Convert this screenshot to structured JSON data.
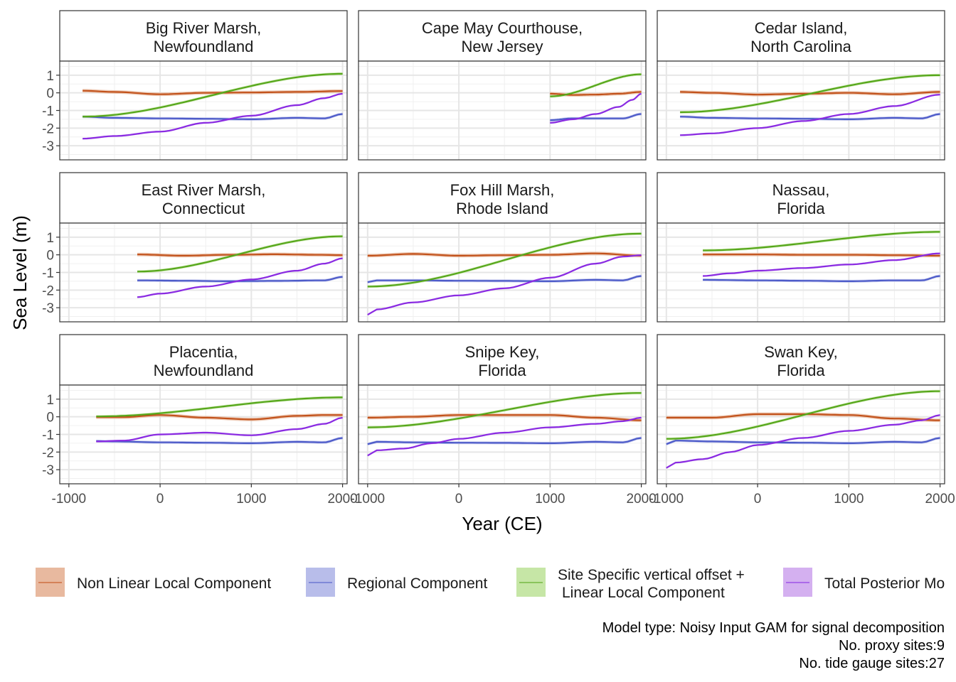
{
  "chart_data": {
    "type": "line",
    "layout": "facet-grid-3x3",
    "xlabel": "Year (CE)",
    "ylabel": "Sea Level (m)",
    "xlim": [
      -1100,
      2050
    ],
    "ylim": [
      -3.8,
      1.8
    ],
    "x_ticks": [
      -1000,
      0,
      1000,
      2000
    ],
    "x_tick_labels": [
      "-1000",
      "0",
      "1000",
      "2000"
    ],
    "y_ticks": [
      1,
      0,
      -1,
      -2,
      -3
    ],
    "y_tick_labels": [
      "1",
      "0",
      "-1",
      "-2",
      "-3"
    ],
    "grid": true,
    "legend_position": "bottom",
    "legend": [
      {
        "key": "nonlinear",
        "label": "Non Linear Local Component",
        "color": "#c2521b",
        "fill": "#e8b99f"
      },
      {
        "key": "regional",
        "label": "Regional Component",
        "color": "#4d5bc9",
        "fill": "#b8bdea"
      },
      {
        "key": "linear",
        "label_lines": [
          "Site Specific vertical offset +",
          "Linear Local Component"
        ],
        "color": "#55a61a",
        "fill": "#c6e6a6"
      },
      {
        "key": "total",
        "label": "Total Posterior Mo",
        "color": "#8a2be2",
        "fill": "#d4b0f0"
      }
    ],
    "caption_lines": [
      "Model type: Noisy Input GAM for signal decomposition",
      "No. proxy sites:9",
      "No. tide gauge sites:27"
    ],
    "panels": [
      {
        "title_lines": [
          "Big River Marsh,",
          "Newfoundland"
        ],
        "nonlinear": {
          "x": [
            -850,
            -500,
            0,
            500,
            1000,
            1500,
            2000
          ],
          "y": [
            0.12,
            0.05,
            -0.08,
            0.0,
            0.02,
            0.05,
            0.1
          ]
        },
        "regional": {
          "x": [
            -850,
            -500,
            0,
            500,
            1000,
            1500,
            1800,
            2000
          ],
          "y": [
            -1.35,
            -1.42,
            -1.45,
            -1.47,
            -1.5,
            -1.42,
            -1.45,
            -1.2
          ]
        },
        "linear": {
          "x": [
            -850,
            2000
          ],
          "y": [
            -1.35,
            1.08
          ]
        },
        "total": {
          "x": [
            -850,
            -500,
            0,
            500,
            1000,
            1500,
            1800,
            2000
          ],
          "y": [
            -2.6,
            -2.45,
            -2.2,
            -1.7,
            -1.3,
            -0.7,
            -0.3,
            -0.05
          ]
        }
      },
      {
        "title_lines": [
          "Cape May Courthouse,",
          "New Jersey"
        ],
        "nonlinear": {
          "x": [
            1000,
            1250,
            1500,
            1750,
            2000
          ],
          "y": [
            -0.05,
            -0.12,
            -0.1,
            -0.05,
            0.05
          ]
        },
        "regional": {
          "x": [
            1000,
            1250,
            1500,
            1800,
            2000
          ],
          "y": [
            -1.55,
            -1.45,
            -1.45,
            -1.45,
            -1.2
          ]
        },
        "linear": {
          "x": [
            1000,
            2000
          ],
          "y": [
            -0.2,
            1.05
          ]
        },
        "total": {
          "x": [
            1000,
            1250,
            1500,
            1750,
            1900,
            2000
          ],
          "y": [
            -1.7,
            -1.5,
            -1.2,
            -0.8,
            -0.4,
            -0.05
          ]
        }
      },
      {
        "title_lines": [
          "Cedar Island,",
          "North Carolina"
        ],
        "nonlinear": {
          "x": [
            -850,
            -500,
            0,
            500,
            1000,
            1500,
            2000
          ],
          "y": [
            0.05,
            0.0,
            -0.1,
            -0.05,
            0.0,
            -0.08,
            0.05
          ]
        },
        "regional": {
          "x": [
            -850,
            -500,
            0,
            500,
            1000,
            1500,
            1800,
            2000
          ],
          "y": [
            -1.35,
            -1.42,
            -1.45,
            -1.47,
            -1.5,
            -1.42,
            -1.45,
            -1.2
          ]
        },
        "linear": {
          "x": [
            -850,
            2000
          ],
          "y": [
            -1.1,
            1.0
          ]
        },
        "total": {
          "x": [
            -850,
            -500,
            0,
            500,
            1000,
            1500,
            2000
          ],
          "y": [
            -2.4,
            -2.3,
            -2.0,
            -1.6,
            -1.2,
            -0.75,
            -0.1
          ]
        }
      },
      {
        "title_lines": [
          "East River Marsh,",
          "Connecticut"
        ],
        "nonlinear": {
          "x": [
            -250,
            250,
            750,
            1250,
            1750,
            2000
          ],
          "y": [
            0.02,
            -0.05,
            0.0,
            0.03,
            0.0,
            -0.02
          ]
        },
        "regional": {
          "x": [
            -250,
            250,
            750,
            1250,
            1800,
            2000
          ],
          "y": [
            -1.45,
            -1.47,
            -1.5,
            -1.48,
            -1.45,
            -1.25
          ]
        },
        "linear": {
          "x": [
            -250,
            2000
          ],
          "y": [
            -0.95,
            1.05
          ]
        },
        "total": {
          "x": [
            -250,
            0,
            500,
            1000,
            1500,
            1800,
            2000
          ],
          "y": [
            -2.4,
            -2.2,
            -1.8,
            -1.4,
            -0.9,
            -0.5,
            -0.2
          ]
        }
      },
      {
        "title_lines": [
          "Fox Hill Marsh,",
          "Rhode Island"
        ],
        "nonlinear": {
          "x": [
            -1000,
            -500,
            0,
            500,
            1000,
            1500,
            2000
          ],
          "y": [
            -0.05,
            0.05,
            -0.05,
            -0.02,
            0.0,
            0.08,
            -0.05
          ]
        },
        "regional": {
          "x": [
            -1000,
            -900,
            -500,
            0,
            500,
            1000,
            1500,
            1800,
            2000
          ],
          "y": [
            -1.55,
            -1.45,
            -1.45,
            -1.47,
            -1.48,
            -1.5,
            -1.42,
            -1.45,
            -1.2
          ]
        },
        "linear": {
          "x": [
            -1000,
            2000
          ],
          "y": [
            -1.8,
            1.2
          ]
        },
        "total": {
          "x": [
            -1000,
            -900,
            -500,
            0,
            500,
            1000,
            1500,
            1800,
            2000
          ],
          "y": [
            -3.4,
            -3.1,
            -2.7,
            -2.3,
            -1.9,
            -1.3,
            -0.5,
            -0.1,
            -0.02
          ]
        }
      },
      {
        "title_lines": [
          "Nassau,",
          "Florida"
        ],
        "nonlinear": {
          "x": [
            -600,
            0,
            500,
            1000,
            1500,
            2000
          ],
          "y": [
            0.02,
            0.02,
            0.0,
            0.0,
            -0.02,
            -0.05
          ]
        },
        "regional": {
          "x": [
            -600,
            0,
            500,
            1000,
            1500,
            1800,
            2000
          ],
          "y": [
            -1.42,
            -1.45,
            -1.47,
            -1.5,
            -1.45,
            -1.45,
            -1.2
          ]
        },
        "linear": {
          "x": [
            -600,
            2000
          ],
          "y": [
            0.25,
            1.3
          ]
        },
        "total": {
          "x": [
            -600,
            -300,
            0,
            500,
            1000,
            1500,
            2000
          ],
          "y": [
            -1.2,
            -1.05,
            -0.9,
            -0.75,
            -0.55,
            -0.3,
            0.08
          ]
        }
      },
      {
        "title_lines": [
          "Placentia,",
          "Newfoundland"
        ],
        "nonlinear": {
          "x": [
            -700,
            -400,
            0,
            500,
            1000,
            1500,
            1800,
            2000
          ],
          "y": [
            -0.02,
            -0.02,
            0.1,
            -0.05,
            -0.15,
            0.05,
            0.1,
            0.1
          ]
        },
        "regional": {
          "x": [
            -700,
            -500,
            0,
            500,
            1000,
            1500,
            1800,
            2000
          ],
          "y": [
            -1.38,
            -1.4,
            -1.45,
            -1.47,
            -1.5,
            -1.42,
            -1.45,
            -1.2
          ]
        },
        "linear": {
          "x": [
            -700,
            2000
          ],
          "y": [
            0.02,
            1.1
          ]
        },
        "total": {
          "x": [
            -700,
            -400,
            0,
            500,
            1000,
            1500,
            1800,
            2000
          ],
          "y": [
            -1.4,
            -1.35,
            -1.0,
            -0.9,
            -1.05,
            -0.7,
            -0.4,
            -0.05
          ]
        }
      },
      {
        "title_lines": [
          "Snipe Key,",
          "Florida"
        ],
        "nonlinear": {
          "x": [
            -1000,
            -500,
            0,
            500,
            1000,
            1500,
            2000
          ],
          "y": [
            -0.05,
            0.0,
            0.1,
            0.1,
            0.1,
            -0.05,
            -0.2
          ]
        },
        "regional": {
          "x": [
            -1000,
            -900,
            -500,
            0,
            500,
            1000,
            1500,
            1800,
            2000
          ],
          "y": [
            -1.55,
            -1.42,
            -1.45,
            -1.47,
            -1.48,
            -1.5,
            -1.42,
            -1.45,
            -1.2
          ]
        },
        "linear": {
          "x": [
            -1000,
            2000
          ],
          "y": [
            -0.6,
            1.35
          ]
        },
        "total": {
          "x": [
            -1000,
            -900,
            -600,
            -300,
            0,
            500,
            1000,
            1500,
            1800,
            2000
          ],
          "y": [
            -2.2,
            -1.9,
            -1.8,
            -1.5,
            -1.25,
            -0.9,
            -0.6,
            -0.4,
            -0.25,
            -0.05
          ]
        }
      },
      {
        "title_lines": [
          "Swan Key,",
          "Florida"
        ],
        "nonlinear": {
          "x": [
            -1000,
            -500,
            0,
            500,
            1000,
            1500,
            2000
          ],
          "y": [
            -0.05,
            -0.05,
            0.15,
            0.15,
            0.1,
            -0.1,
            -0.2
          ]
        },
        "regional": {
          "x": [
            -1000,
            -900,
            -500,
            0,
            500,
            1000,
            1500,
            1800,
            2000
          ],
          "y": [
            -1.55,
            -1.35,
            -1.4,
            -1.45,
            -1.47,
            -1.5,
            -1.42,
            -1.45,
            -1.2
          ]
        },
        "linear": {
          "x": [
            -1000,
            2000
          ],
          "y": [
            -1.25,
            1.45
          ]
        },
        "total": {
          "x": [
            -1000,
            -900,
            -600,
            -300,
            0,
            500,
            1000,
            1500,
            1800,
            2000
          ],
          "y": [
            -2.9,
            -2.6,
            -2.4,
            -2.0,
            -1.6,
            -1.2,
            -0.8,
            -0.45,
            -0.2,
            0.1
          ]
        }
      }
    ]
  }
}
